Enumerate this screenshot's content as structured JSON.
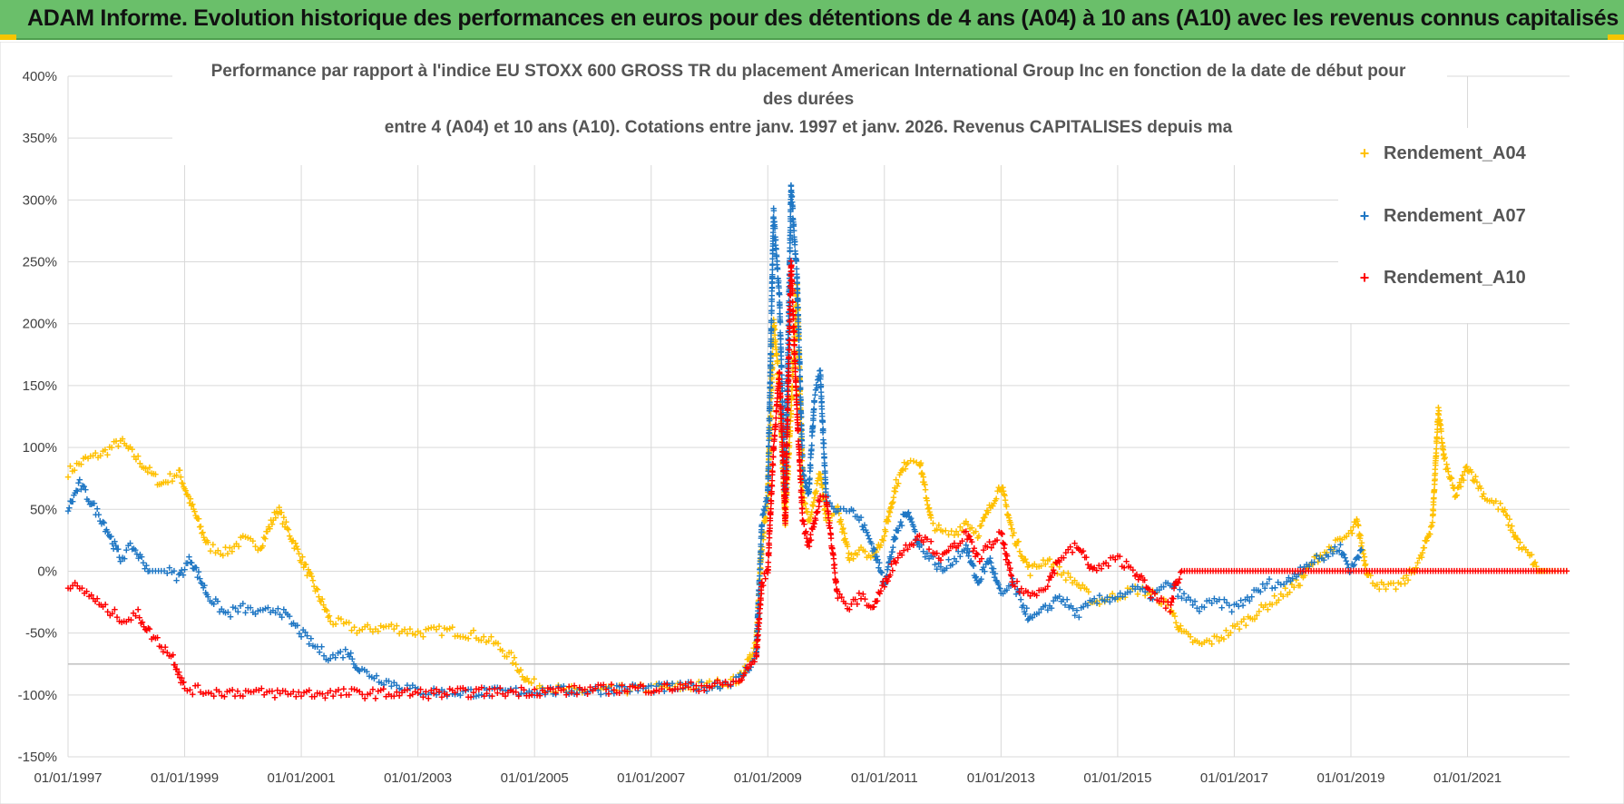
{
  "banner": {
    "title": "ADAM Informe. Evolution historique des performances en euros pour des détentions de 4 ans (A04) à 10 ans (A10) avec les revenus connus capitalisés"
  },
  "colors": {
    "a04": "#ffc000",
    "a07": "#1f77c4",
    "a10": "#ff0000",
    "banner": "#6abf6a"
  },
  "chart_data": {
    "type": "scatter",
    "title_lines": [
      "Performance par rapport à l'indice EU STOXX 600 GROSS TR  du placement American International Group Inc en fonction de la date de début pour",
      "des durées",
      "entre 4 (A04) et 10 ans (A10).  Cotations entre janv. 1997 et janv. 2026. Revenus CAPITALISES depuis ma"
    ],
    "ylim": [
      -150,
      400
    ],
    "ytick_labels": [
      "-150%",
      "-100%",
      "-50%",
      "0%",
      "50%",
      "100%",
      "150%",
      "200%",
      "250%",
      "300%",
      "350%",
      "400%"
    ],
    "xlim": [
      1997.0,
      2022.75
    ],
    "xtick_labels": [
      "01/01/1997",
      "01/01/1999",
      "01/01/2001",
      "01/01/2003",
      "01/01/2005",
      "01/01/2007",
      "01/01/2009",
      "01/01/2011",
      "01/01/2013",
      "01/01/2015",
      "01/01/2017",
      "01/01/2019",
      "01/01/2021"
    ],
    "legend": [
      "Rendement_A04",
      "Rendement_A07",
      "Rendement_A10"
    ],
    "series": [
      {
        "name": "Rendement_A04",
        "color": "#ffc000",
        "x": [
          1997.0,
          1997.3,
          1997.6,
          1997.9,
          1998.3,
          1998.6,
          1998.9,
          1999.1,
          1999.4,
          1999.7,
          2000.0,
          2000.3,
          2000.6,
          2000.9,
          2001.2,
          2001.5,
          2002.0,
          2002.5,
          2003.0,
          2003.5,
          2004.0,
          2004.3,
          2004.6,
          2004.9,
          2005.5,
          2006.0,
          2006.5,
          2007.0,
          2007.5,
          2008.0,
          2008.5,
          2008.8,
          2008.9,
          2009.0,
          2009.1,
          2009.2,
          2009.3,
          2009.4,
          2009.5,
          2009.6,
          2009.7,
          2009.8,
          2009.9,
          2010.0,
          2010.2,
          2010.4,
          2010.6,
          2010.8,
          2011.0,
          2011.2,
          2011.4,
          2011.6,
          2011.8,
          2012.0,
          2012.2,
          2012.4,
          2012.6,
          2012.8,
          2013.0,
          2013.2,
          2013.5,
          2013.8,
          2014.0,
          2014.3,
          2014.6,
          2015.0,
          2015.3,
          2015.6,
          2015.9,
          2016.1,
          2016.4,
          2016.7,
          2016.9,
          2017.2,
          2017.5,
          2017.8,
          2018.1,
          2018.4,
          2018.7,
          2019.0,
          2019.1,
          2019.3,
          2019.6,
          2019.9,
          2020.2,
          2020.4,
          2020.5,
          2020.6,
          2020.8,
          2021.0,
          2021.3,
          2021.6,
          2021.9,
          2022.1,
          2022.2,
          2022.3,
          2022.5,
          2022.75
        ],
        "y": [
          80,
          90,
          95,
          105,
          85,
          70,
          80,
          55,
          20,
          15,
          25,
          20,
          50,
          20,
          -10,
          -40,
          -48,
          -45,
          -50,
          -48,
          -52,
          -58,
          -70,
          -90,
          -97,
          -97,
          -96,
          -95,
          -94,
          -92,
          -88,
          -60,
          20,
          60,
          200,
          150,
          40,
          130,
          230,
          60,
          40,
          60,
          80,
          40,
          50,
          10,
          20,
          10,
          30,
          70,
          90,
          90,
          40,
          30,
          30,
          40,
          30,
          50,
          70,
          30,
          0,
          10,
          0,
          -10,
          -25,
          -20,
          -15,
          -18,
          -30,
          -50,
          -60,
          -55,
          -50,
          -40,
          -30,
          -20,
          -10,
          10,
          20,
          30,
          40,
          -5,
          -15,
          -10,
          10,
          40,
          130,
          90,
          60,
          85,
          60,
          50,
          20,
          10,
          0,
          0,
          0,
          0
        ]
      },
      {
        "name": "Rendement_A07",
        "color": "#1f77c4",
        "x": [
          1997.0,
          1997.2,
          1997.4,
          1997.6,
          1997.9,
          1998.1,
          1998.4,
          1998.7,
          1998.9,
          1999.1,
          1999.4,
          1999.7,
          2000.0,
          2000.3,
          2000.6,
          2000.9,
          2001.2,
          2001.5,
          2001.8,
          2002.0,
          2002.5,
          2003.0,
          2003.5,
          2004.0,
          2004.5,
          2005.0,
          2005.5,
          2006.0,
          2006.5,
          2007.0,
          2007.5,
          2008.0,
          2008.5,
          2008.8,
          2008.9,
          2009.0,
          2009.1,
          2009.2,
          2009.3,
          2009.4,
          2009.5,
          2009.6,
          2009.7,
          2009.8,
          2009.9,
          2010.0,
          2010.2,
          2010.4,
          2010.6,
          2010.8,
          2011.0,
          2011.2,
          2011.4,
          2011.6,
          2011.8,
          2012.0,
          2012.2,
          2012.4,
          2012.6,
          2012.8,
          2013.0,
          2013.2,
          2013.5,
          2013.8,
          2014.0,
          2014.3,
          2014.6,
          2015.0,
          2015.3,
          2015.6,
          2015.9,
          2016.1,
          2016.4,
          2016.7,
          2017.0,
          2017.3,
          2017.6,
          2017.9,
          2018.2,
          2018.5,
          2018.8,
          2019.0,
          2019.2
        ],
        "y": [
          50,
          70,
          55,
          40,
          10,
          20,
          0,
          0,
          -5,
          10,
          -20,
          -35,
          -30,
          -35,
          -30,
          -45,
          -60,
          -70,
          -65,
          -80,
          -90,
          -97,
          -98,
          -98,
          -98,
          -97,
          -97,
          -96,
          -95,
          -95,
          -94,
          -93,
          -88,
          -70,
          40,
          60,
          290,
          220,
          60,
          310,
          240,
          80,
          60,
          140,
          160,
          60,
          50,
          50,
          40,
          20,
          -10,
          30,
          50,
          20,
          10,
          0,
          10,
          20,
          -10,
          10,
          -20,
          -10,
          -40,
          -30,
          -20,
          -35,
          -25,
          -20,
          -15,
          -20,
          -10,
          -20,
          -30,
          -25,
          -30,
          -20,
          -10,
          -10,
          5,
          10,
          20,
          0,
          20
        ]
      },
      {
        "name": "Rendement_A10",
        "color": "#ff0000",
        "x": [
          1997.0,
          1997.2,
          1997.4,
          1997.6,
          1997.8,
          1998.0,
          1998.2,
          1998.4,
          1998.6,
          1998.8,
          1999.0,
          1999.5,
          2000.0,
          2000.5,
          2001.0,
          2001.5,
          2002.0,
          2002.5,
          2003.0,
          2003.5,
          2004.0,
          2004.5,
          2005.0,
          2005.5,
          2006.0,
          2006.5,
          2007.0,
          2007.5,
          2008.0,
          2008.5,
          2008.8,
          2008.9,
          2009.0,
          2009.1,
          2009.2,
          2009.3,
          2009.4,
          2009.5,
          2009.6,
          2009.7,
          2009.8,
          2009.9,
          2010.0,
          2010.2,
          2010.4,
          2010.6,
          2010.8,
          2011.0,
          2011.2,
          2011.4,
          2011.6,
          2011.8,
          2012.0,
          2012.2,
          2012.4,
          2012.6,
          2012.8,
          2013.0,
          2013.2,
          2013.5,
          2013.8,
          2014.0,
          2014.3,
          2014.6,
          2015.0,
          2015.3,
          2015.6,
          2015.9,
          2016.0,
          2016.1,
          2016.5,
          2017.0,
          2017.5,
          2018.0,
          2018.5,
          2019.0,
          2019.5,
          2020.0,
          2020.5,
          2021.0,
          2021.5,
          2022.0,
          2022.5,
          2022.75
        ],
        "y": [
          -10,
          -15,
          -20,
          -30,
          -35,
          -40,
          -35,
          -50,
          -60,
          -70,
          -95,
          -98,
          -98,
          -99,
          -99,
          -99,
          -99,
          -99,
          -99,
          -99,
          -98,
          -98,
          -97,
          -97,
          -96,
          -95,
          -95,
          -94,
          -93,
          -90,
          -70,
          -10,
          0,
          100,
          160,
          40,
          250,
          130,
          40,
          20,
          40,
          60,
          60,
          -20,
          -30,
          -20,
          -30,
          -10,
          10,
          20,
          30,
          20,
          10,
          20,
          30,
          10,
          20,
          30,
          -10,
          -20,
          -10,
          10,
          20,
          0,
          10,
          0,
          -20,
          -30,
          -10,
          0,
          0,
          0,
          0,
          0,
          0,
          0,
          0,
          0,
          0,
          0,
          0,
          0,
          0,
          0
        ]
      }
    ]
  }
}
